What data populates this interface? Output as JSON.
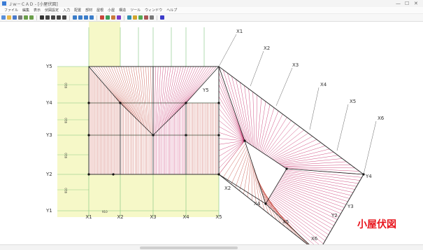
{
  "window": {
    "title": "Ｊｗ－ＣＡＤ  - [小屋伏図]",
    "min_glyph": "—",
    "max_glyph": "☐",
    "close_glyph": "✕"
  },
  "menu": [
    "ファイル",
    "編集",
    "表示",
    "伏図設定",
    "入力",
    "配置",
    "部材",
    "屋根",
    "小屋",
    "構造",
    "ツール",
    "ウィンドウ",
    "ヘルプ"
  ],
  "toolbar_icons": [
    "new-icon",
    "open-icon",
    "save-icon",
    "print-icon",
    "undo-icon",
    "redo-icon",
    "sep",
    "select-icon",
    "line-icon",
    "rect-icon",
    "circle-icon",
    "arc-icon",
    "sep",
    "zoom-in-icon",
    "zoom-out-icon",
    "fit-icon",
    "pan-icon",
    "sep",
    "hip-icon",
    "valley-icon",
    "rafter-icon",
    "purlin-icon",
    "sep",
    "layer-icon",
    "color-icon",
    "grid-icon",
    "snap-icon",
    "measure-icon",
    "sep",
    "help-icon"
  ],
  "toolbar_colors": [
    "#5a8fd8",
    "#e8b84a",
    "#4a7ac9",
    "#7a7a7a",
    "#6a9e4a",
    "#6a9e4a",
    "#333",
    "#444",
    "#444",
    "#444",
    "#444",
    "#3b7dc9",
    "#3b7dc9",
    "#3b7dc9",
    "#3b7dc9",
    "#c9443b",
    "#3b9e5a",
    "#c97a3b",
    "#7a3bc9",
    "#2f8fb0",
    "#d1a52c",
    "#55aa55",
    "#aa5555",
    "#777",
    "#3b3bc9"
  ],
  "grid": {
    "y_labels": [
      "Y5",
      "Y4",
      "Y3",
      "Y2",
      "Y1"
    ],
    "x_labels": [
      "X1",
      "X2",
      "X3",
      "X4",
      "X5"
    ],
    "dim_labels": [
      "910",
      "910",
      "910",
      "910"
    ],
    "x_diag_labels": [
      "X1",
      "X2",
      "X3",
      "X4",
      "X5",
      "X6"
    ],
    "y_diag_labels": [
      "Y5",
      "Y4",
      "Y3",
      "Y2"
    ],
    "x_diag_lower_labels": [
      "X2",
      "X4",
      "X5",
      "X6"
    ],
    "misc_labels": [
      "Y1",
      "910"
    ]
  },
  "status": {
    "left": "",
    "middle": "",
    "right": ""
  },
  "caption": "小屋伏図",
  "colors": {
    "rafter_red": "#c0392b",
    "rafter_pink": "#c2185b",
    "grid_green": "#7cc37c",
    "highlight_yellow": "#f6f8c8",
    "frame": "#333333"
  }
}
